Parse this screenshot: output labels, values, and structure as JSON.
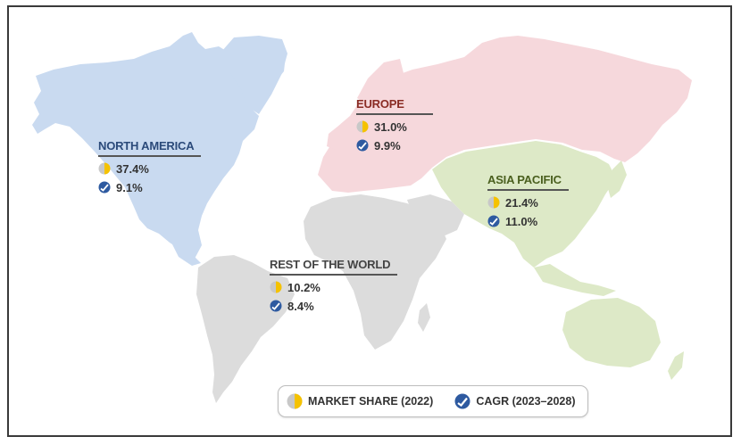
{
  "regions": {
    "north_america": {
      "title": "NORTH AMERICA",
      "market_share": "37.4%",
      "cagr": "9.1%",
      "title_color": "#2b4a7a"
    },
    "europe": {
      "title": "EUROPE",
      "market_share": "31.0%",
      "cagr": "9.9%",
      "title_color": "#8a2b24"
    },
    "asia_pacific": {
      "title": "ASIA PACIFIC",
      "market_share": "21.4%",
      "cagr": "11.0%",
      "title_color": "#4a5f1e"
    },
    "rest_of_world": {
      "title": "REST OF THE WORLD",
      "market_share": "10.2%",
      "cagr": "8.4%",
      "title_color": "#444444"
    }
  },
  "legend": {
    "market_share_label": "MARKET SHARE (2022)",
    "cagr_label": "CAGR (2023–2028)"
  },
  "colors": {
    "north_america": "#c9daf0",
    "europe": "#f6d8dc",
    "asia_pacific": "#dde9c7",
    "rest_of_world": "#dcdcdc",
    "share_icon_yellow": "#f5c200",
    "share_icon_gray": "#c8c8c8",
    "cagr_icon_blue": "#2e5aa0"
  },
  "icons": {
    "market_share": "half-pie-icon",
    "cagr": "trend-check-icon"
  }
}
